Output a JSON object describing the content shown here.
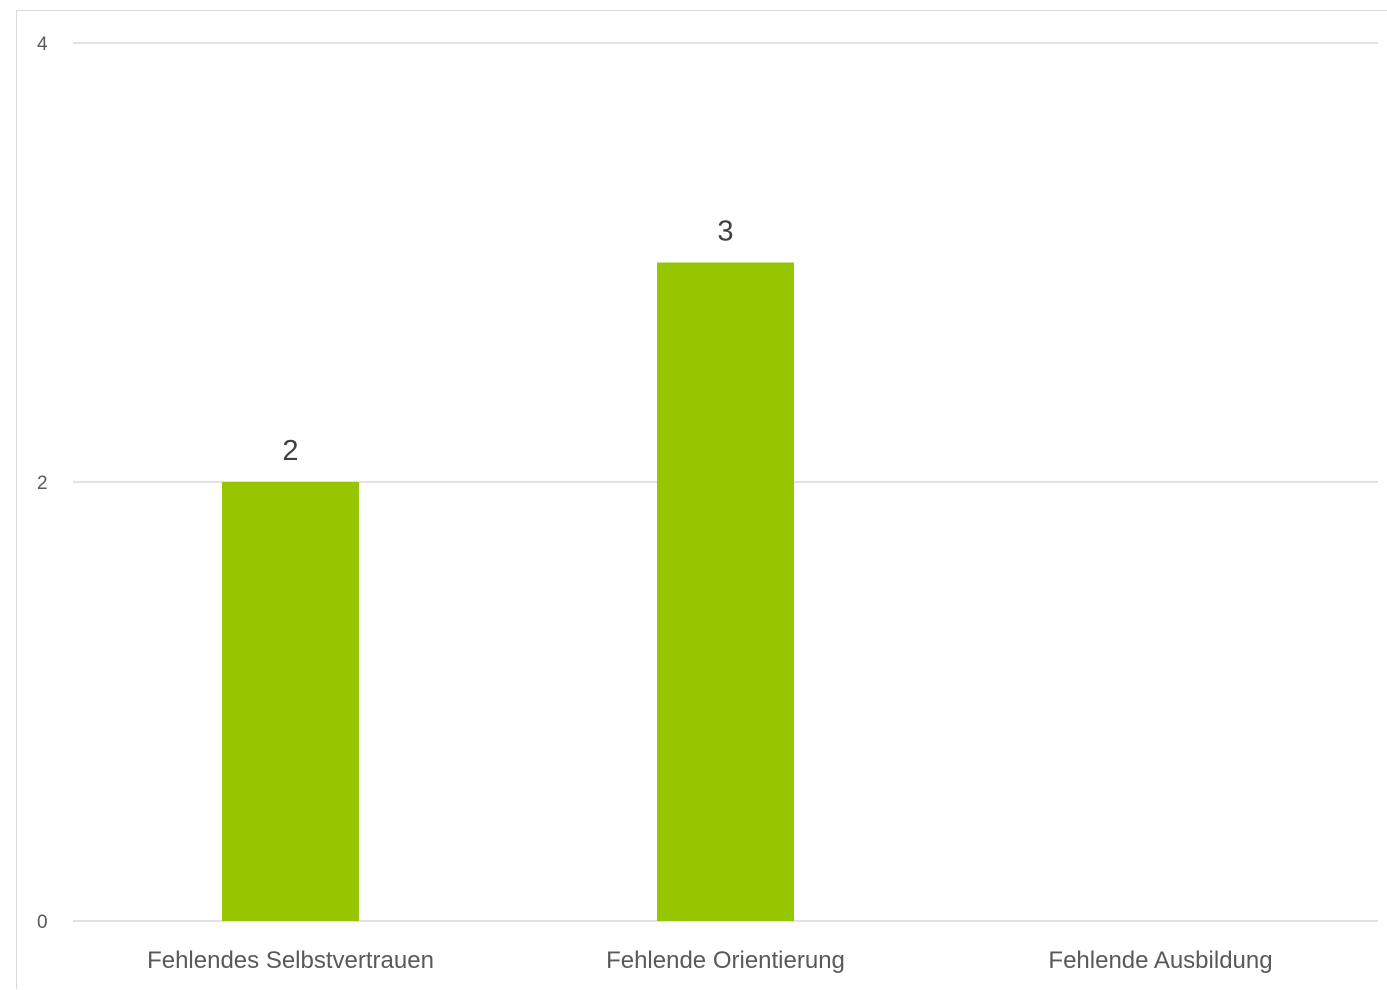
{
  "chart_data": {
    "type": "bar",
    "title": "",
    "xlabel": "",
    "ylabel": "",
    "categories": [
      "Fehlendes Selbstvertrauen",
      "Fehlende Orientierung",
      "Fehlende Ausbildung"
    ],
    "values": [
      2,
      3,
      0
    ],
    "data_labels": [
      "2",
      "3",
      null
    ],
    "ylim": [
      0,
      4
    ],
    "yticks": [
      0,
      2,
      4
    ],
    "grid": true,
    "legend": "none",
    "colors": {
      "bar": "#96C600",
      "grid": "#d9d9d9",
      "axis_text": "#595959",
      "label_text": "#404040"
    }
  }
}
